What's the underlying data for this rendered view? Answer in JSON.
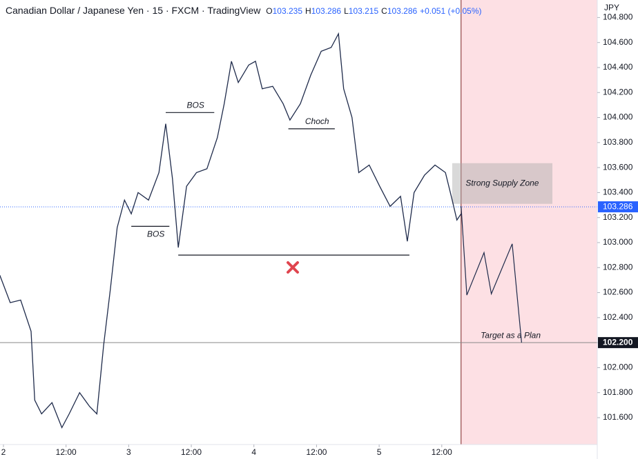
{
  "chart_data": {
    "type": "line",
    "title": "Canadian Dollar / Japanese Yen · 15 · FXCM · TradingView",
    "ohlc": [
      {
        "label": "O",
        "value": "103.235"
      },
      {
        "label": "H",
        "value": "103.286"
      },
      {
        "label": "L",
        "value": "103.215"
      },
      {
        "label": "C",
        "value": "103.286"
      }
    ],
    "change": "+0.051 (+0.05%)",
    "currency": "JPY",
    "xlim": [
      -0.66,
      113.8
    ],
    "ylim": [
      101.385,
      104.94
    ],
    "xticks": [
      {
        "value": 0,
        "label": "2"
      },
      {
        "value": 12,
        "label": "12:00"
      },
      {
        "value": 24,
        "label": "3"
      },
      {
        "value": 36,
        "label": "12:00"
      },
      {
        "value": 48,
        "label": "4"
      },
      {
        "value": 60,
        "label": "12:00"
      },
      {
        "value": 72,
        "label": "5"
      },
      {
        "value": 84,
        "label": "12:00"
      }
    ],
    "yticks": [
      {
        "value": 101.6,
        "label": "101.600"
      },
      {
        "value": 101.8,
        "label": "101.800"
      },
      {
        "value": 102,
        "label": "102.000"
      },
      {
        "value": 102.2,
        "label": "102.200"
      },
      {
        "value": 102.4,
        "label": "102.400"
      },
      {
        "value": 102.6,
        "label": "102.600"
      },
      {
        "value": 102.8,
        "label": "102.800"
      },
      {
        "value": 103,
        "label": "103.000"
      },
      {
        "value": 103.2,
        "label": "103.200"
      },
      {
        "value": 103.4,
        "label": "103.400"
      },
      {
        "value": 103.6,
        "label": "103.600"
      },
      {
        "value": 103.8,
        "label": "103.800"
      },
      {
        "value": 104,
        "label": "104.000"
      },
      {
        "value": 104.2,
        "label": "104.200"
      },
      {
        "value": 104.4,
        "label": "104.400"
      },
      {
        "value": 104.6,
        "label": "104.600"
      },
      {
        "value": 104.8,
        "label": "104.800"
      }
    ],
    "series": [
      {
        "color": "#1e2a4a",
        "x": [
          -0.7,
          1.3,
          3.3,
          5.3,
          6.0,
          7.3,
          9.3,
          11.2,
          12.6,
          14.6,
          16.5,
          17.9,
          19.2,
          20.5,
          21.8,
          23.2,
          24.5,
          25.8,
          27.8,
          29.8,
          31.1,
          32.4,
          33.5,
          35.1,
          37.0,
          39.0,
          41.0,
          42.3,
          43.7,
          45.0,
          47.0,
          48.3,
          49.6,
          51.6,
          53.6,
          54.9,
          56.9,
          58.9,
          60.9,
          62.8,
          64.2,
          65.2,
          66.8,
          68.1,
          70.1,
          72.1,
          74.1,
          76.1,
          77.4,
          78.7,
          80.7,
          82.7,
          84.7,
          86.0,
          86.9,
          87.7
        ],
        "values": [
          102.74,
          102.52,
          102.54,
          102.29,
          101.74,
          101.63,
          101.72,
          101.52,
          101.63,
          101.8,
          101.69,
          101.63,
          102.18,
          102.63,
          103.12,
          103.34,
          103.23,
          103.4,
          103.34,
          103.56,
          103.95,
          103.51,
          102.96,
          103.45,
          103.56,
          103.59,
          103.84,
          104.11,
          104.45,
          104.28,
          104.42,
          104.45,
          104.23,
          104.25,
          104.11,
          103.98,
          104.11,
          104.34,
          104.53,
          104.56,
          104.67,
          104.23,
          104.0,
          103.56,
          103.62,
          103.45,
          103.29,
          103.37,
          103.01,
          103.4,
          103.54,
          103.62,
          103.56,
          103.34,
          103.18,
          103.23
        ]
      }
    ],
    "projection": {
      "color": "#1e2a4a",
      "x": [
        87.7,
        88.8,
        92.1,
        93.5,
        97.5,
        99.3
      ],
      "values": [
        103.29,
        102.58,
        102.92,
        102.59,
        102.99,
        102.2
      ]
    },
    "levels": [
      {
        "label": "BOS",
        "y": 104.04,
        "x": [
          31.1,
          40.4
        ],
        "text": "above"
      },
      {
        "label": "BOS",
        "y": 103.13,
        "x": [
          24.5,
          31.8
        ],
        "text": "below"
      },
      {
        "label": "Choch",
        "y": 103.91,
        "x": [
          54.6,
          63.5
        ],
        "text": "above"
      },
      {
        "y": 102.9,
        "x": [
          33.5,
          77.8
        ]
      }
    ],
    "supply_zone": {
      "label": "Strong Supply Zone",
      "x": [
        86.0,
        105.2
      ],
      "y": [
        103.31,
        103.635
      ]
    },
    "target": {
      "label": "Target as a Plan",
      "value": 102.2,
      "x": 97.2,
      "price_label": "102.200"
    },
    "last_price": 103.286
  }
}
